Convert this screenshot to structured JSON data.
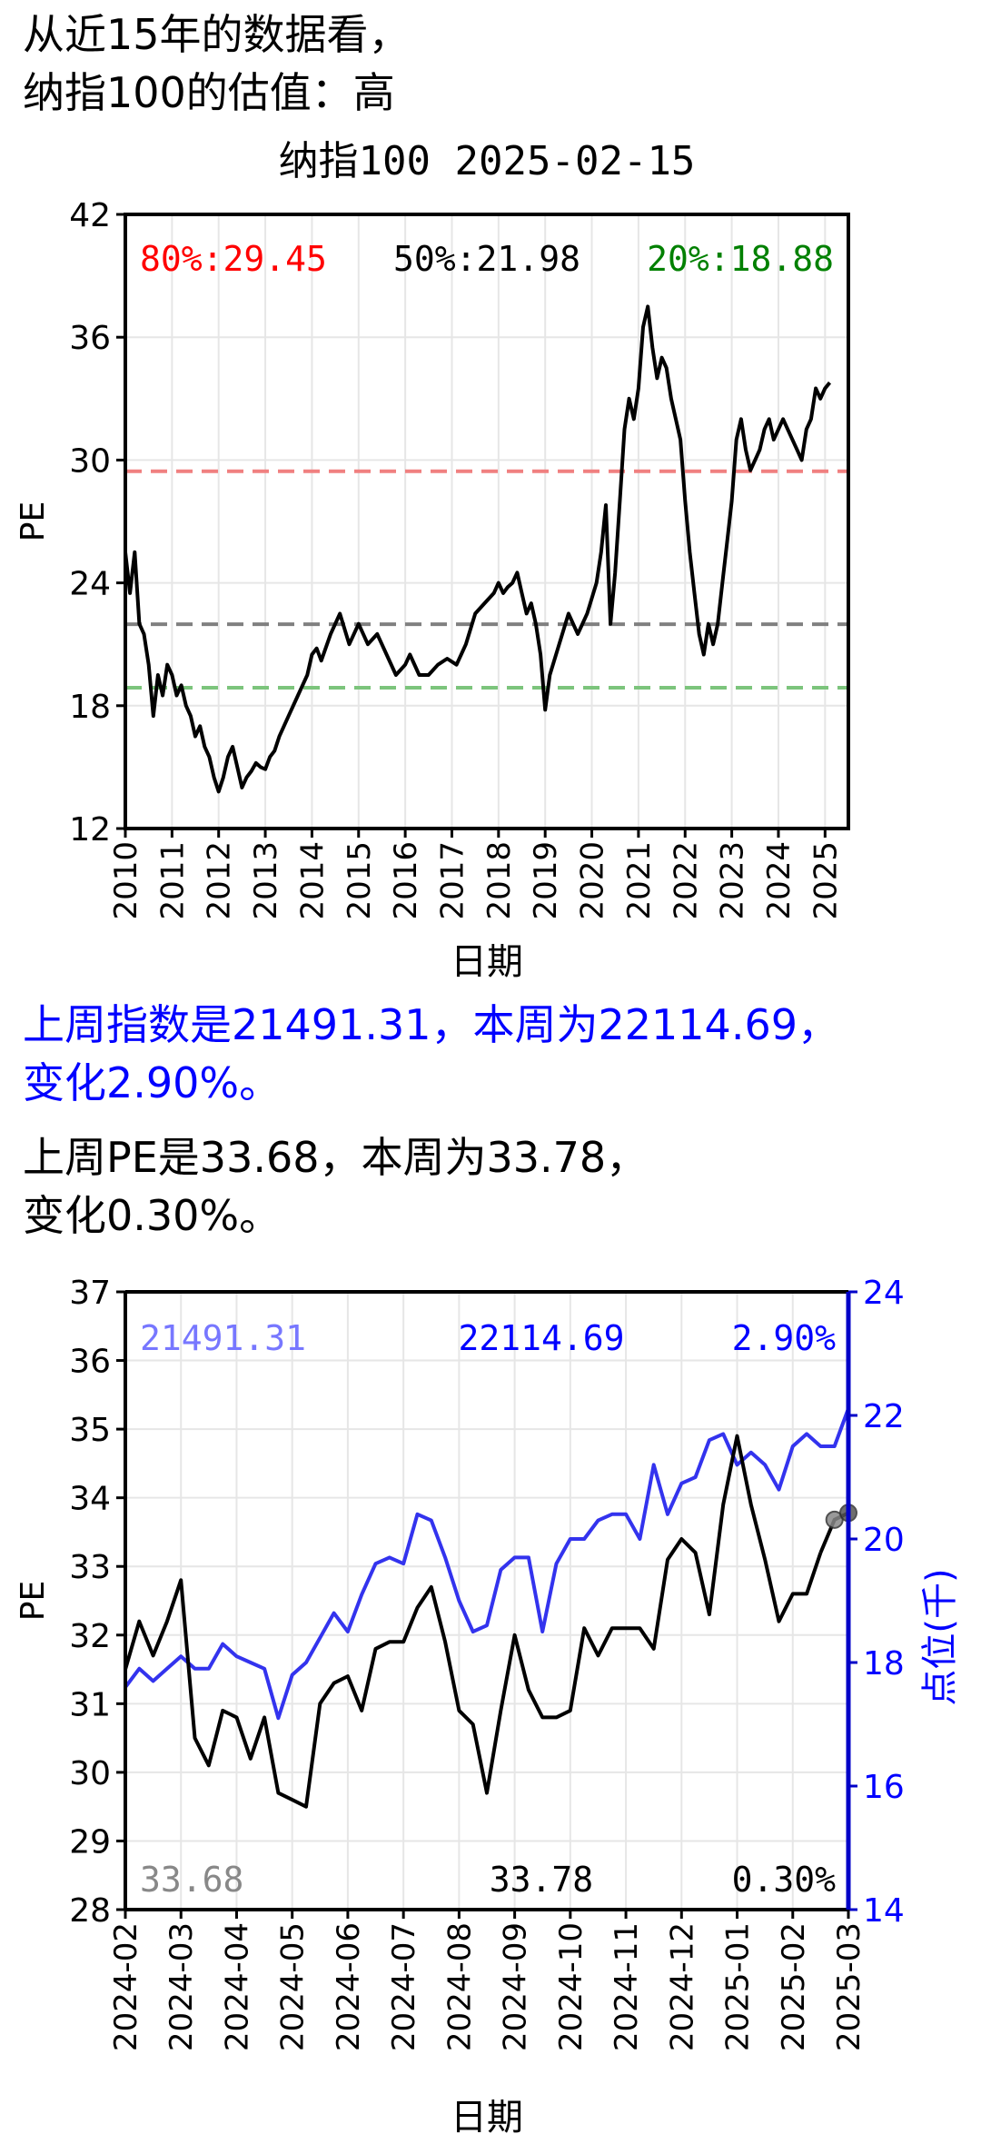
{
  "header": {
    "line1": "从近15年的数据看，",
    "line2": "纳指100的估值：高"
  },
  "summary": {
    "index_line1": "上周指数是21491.31，本周为22114.69，",
    "index_line2": "变化2.90%。",
    "pe_line1": "上周PE是33.68，本周为33.78，",
    "pe_line2": "变化0.30%。"
  },
  "colors": {
    "red": "#ff0000",
    "green": "#008000",
    "blue": "#0000ff",
    "black": "#000000"
  },
  "chart_data": [
    {
      "type": "line",
      "title": "纳指100 2025-02-15",
      "xlabel": "日期",
      "ylabel": "PE",
      "xlim": [
        2010,
        2025.5
      ],
      "ylim": [
        12,
        42
      ],
      "yticks": [
        "12",
        "18",
        "24",
        "30",
        "36",
        "42"
      ],
      "xticks": [
        "2010",
        "2011",
        "2012",
        "2013",
        "2014",
        "2015",
        "2016",
        "2017",
        "2018",
        "2019",
        "2020",
        "2021",
        "2022",
        "2023",
        "2024",
        "2025"
      ],
      "grid": true,
      "percentiles": [
        {
          "label": "80%:29.45",
          "value": 29.45,
          "color": "#ff0000"
        },
        {
          "label": "50%:21.98",
          "value": 21.98,
          "color": "#000000"
        },
        {
          "label": "20%:18.88",
          "value": 18.88,
          "color": "#008000"
        }
      ],
      "series": [
        {
          "x": [
            2010.0,
            2010.1,
            2010.2,
            2010.3,
            2010.4,
            2010.5,
            2010.6,
            2010.7,
            2010.8,
            2010.9,
            2011.0,
            2011.1,
            2011.2,
            2011.3,
            2011.4,
            2011.5,
            2011.6,
            2011.7,
            2011.8,
            2011.9,
            2012.0,
            2012.1,
            2012.2,
            2012.3,
            2012.4,
            2012.5,
            2012.6,
            2012.7,
            2012.8,
            2012.9,
            2013.0,
            2013.1,
            2013.2,
            2013.3,
            2013.5,
            2013.7,
            2013.9,
            2014.0,
            2014.1,
            2014.2,
            2014.4,
            2014.6,
            2014.8,
            2015.0,
            2015.2,
            2015.4,
            2015.6,
            2015.8,
            2016.0,
            2016.1,
            2016.3,
            2016.5,
            2016.7,
            2016.9,
            2017.1,
            2017.3,
            2017.5,
            2017.7,
            2017.9,
            2018.0,
            2018.1,
            2018.2,
            2018.3,
            2018.4,
            2018.5,
            2018.6,
            2018.7,
            2018.8,
            2018.9,
            2019.0,
            2019.1,
            2019.3,
            2019.5,
            2019.7,
            2019.9,
            2020.1,
            2020.2,
            2020.3,
            2020.4,
            2020.5,
            2020.6,
            2020.7,
            2020.8,
            2020.9,
            2021.0,
            2021.1,
            2021.2,
            2021.3,
            2021.4,
            2021.5,
            2021.6,
            2021.7,
            2021.8,
            2021.9,
            2022.0,
            2022.1,
            2022.2,
            2022.3,
            2022.4,
            2022.5,
            2022.6,
            2022.7,
            2022.8,
            2022.9,
            2023.0,
            2023.1,
            2023.2,
            2023.3,
            2023.4,
            2023.5,
            2023.6,
            2023.7,
            2023.8,
            2023.9,
            2024.0,
            2024.1,
            2024.2,
            2024.3,
            2024.4,
            2024.5,
            2024.6,
            2024.7,
            2024.8,
            2024.9,
            2025.0,
            2025.1
          ],
          "y": [
            25.5,
            23.5,
            25.5,
            22.0,
            21.5,
            20.0,
            17.5,
            19.5,
            18.5,
            20.0,
            19.5,
            18.5,
            19.0,
            18.0,
            17.5,
            16.5,
            17.0,
            16.0,
            15.5,
            14.5,
            13.8,
            14.5,
            15.5,
            16.0,
            15.0,
            14.0,
            14.5,
            14.8,
            15.2,
            15.0,
            14.9,
            15.5,
            15.8,
            16.5,
            17.5,
            18.5,
            19.5,
            20.5,
            20.8,
            20.2,
            21.5,
            22.5,
            21.0,
            22.0,
            21.0,
            21.5,
            20.5,
            19.5,
            20.0,
            20.5,
            19.5,
            19.5,
            20.0,
            20.3,
            20.0,
            21.0,
            22.5,
            23.0,
            23.5,
            24.0,
            23.5,
            23.8,
            24.0,
            24.5,
            23.5,
            22.5,
            23.0,
            22.0,
            20.5,
            17.8,
            19.5,
            21.0,
            22.5,
            21.5,
            22.5,
            24.0,
            25.5,
            27.8,
            22.0,
            24.5,
            28.0,
            31.5,
            33.0,
            32.0,
            33.5,
            36.5,
            37.5,
            35.5,
            34.0,
            35.0,
            34.5,
            33.0,
            32.0,
            31.0,
            28.0,
            25.5,
            23.5,
            21.5,
            20.5,
            22.0,
            21.0,
            22.0,
            24.0,
            26.0,
            28.0,
            31.0,
            32.0,
            30.5,
            29.5,
            30.0,
            30.5,
            31.5,
            32.0,
            31.0,
            31.5,
            32.0,
            31.5,
            31.0,
            30.5,
            30.0,
            31.5,
            32.0,
            33.5,
            33.0,
            33.5,
            33.78
          ]
        }
      ]
    },
    {
      "type": "line",
      "xlabel": "日期",
      "ylabel": "PE",
      "ylabel_right": "点位(千)",
      "ylim": [
        28,
        37
      ],
      "ylim_right": [
        14,
        24
      ],
      "yticks": [
        "28",
        "29",
        "30",
        "31",
        "32",
        "33",
        "34",
        "35",
        "36",
        "37"
      ],
      "yticks_right": [
        "14",
        "16",
        "18",
        "20",
        "22",
        "24"
      ],
      "xticks": [
        "2024-02",
        "2024-03",
        "2024-04",
        "2024-05",
        "2024-06",
        "2024-07",
        "2024-08",
        "2024-09",
        "2024-10",
        "2024-11",
        "2024-12",
        "2025-01",
        "2025-02",
        "2025-03"
      ],
      "grid": true,
      "annotations_top": [
        {
          "text": "21491.31",
          "color": "#7777ff"
        },
        {
          "text": "22114.69",
          "color": "#0000ff"
        },
        {
          "text": "2.90%",
          "color": "#0000ff"
        }
      ],
      "annotations_bottom": [
        {
          "text": "33.68",
          "color": "#888888"
        },
        {
          "text": "33.78",
          "color": "#000000"
        },
        {
          "text": "0.30%",
          "color": "#000000"
        }
      ],
      "series": [
        {
          "axis": "left",
          "color": "#000000",
          "x": [
            0.0,
            0.25,
            0.5,
            0.75,
            1.0,
            1.25,
            1.5,
            1.75,
            2.0,
            2.25,
            2.5,
            2.75,
            3.0,
            3.25,
            3.5,
            3.75,
            4.0,
            4.25,
            4.5,
            4.75,
            5.0,
            5.25,
            5.5,
            5.75,
            6.0,
            6.25,
            6.5,
            6.75,
            7.0,
            7.25,
            7.5,
            7.75,
            8.0,
            8.25,
            8.5,
            8.75,
            9.0,
            9.25,
            9.5,
            9.75,
            10.0,
            10.25,
            10.5,
            10.75,
            11.0,
            11.25,
            11.5,
            11.75,
            12.0,
            12.25,
            12.5
          ],
          "y": [
            31.5,
            32.2,
            31.7,
            32.2,
            32.8,
            30.5,
            30.1,
            30.9,
            30.8,
            30.2,
            30.8,
            29.7,
            29.6,
            29.5,
            31.0,
            31.3,
            31.4,
            30.9,
            31.8,
            31.9,
            31.9,
            32.4,
            32.7,
            31.9,
            30.9,
            30.7,
            29.7,
            30.9,
            32.0,
            31.2,
            30.8,
            30.8,
            30.9,
            32.1,
            31.7,
            32.1,
            32.1,
            32.1,
            31.8,
            33.1,
            33.4,
            33.2,
            32.3,
            33.9,
            34.9,
            33.9,
            33.1,
            32.2,
            32.6,
            32.6,
            33.2
          ],
          "x_tail": [
            12.75,
            13.0
          ],
          "y_tail": [
            33.68,
            33.78
          ]
        },
        {
          "axis": "right",
          "color": "#3333ee",
          "x": [
            0.0,
            0.25,
            0.5,
            0.75,
            1.0,
            1.25,
            1.5,
            1.75,
            2.0,
            2.25,
            2.5,
            2.75,
            3.0,
            3.25,
            3.5,
            3.75,
            4.0,
            4.25,
            4.5,
            4.75,
            5.0,
            5.25,
            5.5,
            5.75,
            6.0,
            6.25,
            6.5,
            6.75,
            7.0,
            7.25,
            7.5,
            7.75,
            8.0,
            8.25,
            8.5,
            8.75,
            9.0,
            9.25,
            9.5,
            9.75,
            10.0,
            10.25,
            10.5,
            10.75,
            11.0,
            11.25,
            11.5,
            11.75,
            12.0,
            12.25,
            12.5,
            12.75,
            13.0
          ],
          "y": [
            17.6,
            17.9,
            17.7,
            17.9,
            18.1,
            17.9,
            17.9,
            18.3,
            18.1,
            18.0,
            17.9,
            17.1,
            17.8,
            18.0,
            18.4,
            18.8,
            18.5,
            19.1,
            19.6,
            19.7,
            19.6,
            20.4,
            20.3,
            19.7,
            19.0,
            18.5,
            18.6,
            19.5,
            19.7,
            19.7,
            18.5,
            19.6,
            20.0,
            20.0,
            20.3,
            20.4,
            20.4,
            20.0,
            21.2,
            20.4,
            20.9,
            21.0,
            21.6,
            21.7,
            21.2,
            21.4,
            21.2,
            20.8,
            21.5,
            21.7,
            21.5,
            21.5,
            22.11
          ]
        }
      ]
    }
  ]
}
